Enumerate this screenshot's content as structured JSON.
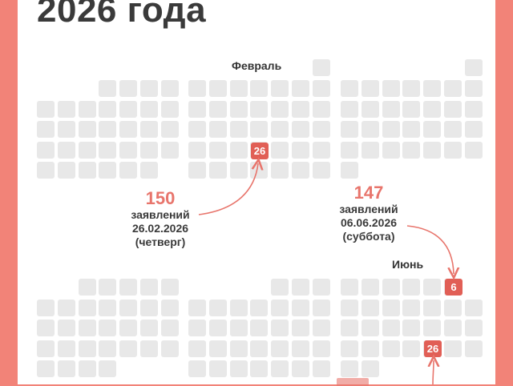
{
  "title": "2026 года",
  "months": {
    "february": "Февраль",
    "june": "Июнь"
  },
  "highlights": {
    "feb": "26",
    "jun6": "6",
    "jun26": "26"
  },
  "callouts": [
    {
      "value": "150",
      "label": "заявлений",
      "date": "26.02.2026",
      "weekday": "(четверг)"
    },
    {
      "value": "147",
      "label": "заявлений",
      "date": "06.06.2026",
      "weekday": "(суббота)"
    }
  ],
  "colors": {
    "accent": "#e15f56",
    "accent_light": "#e8756c",
    "border": "#f28378",
    "cell": "#e8e8e8"
  }
}
